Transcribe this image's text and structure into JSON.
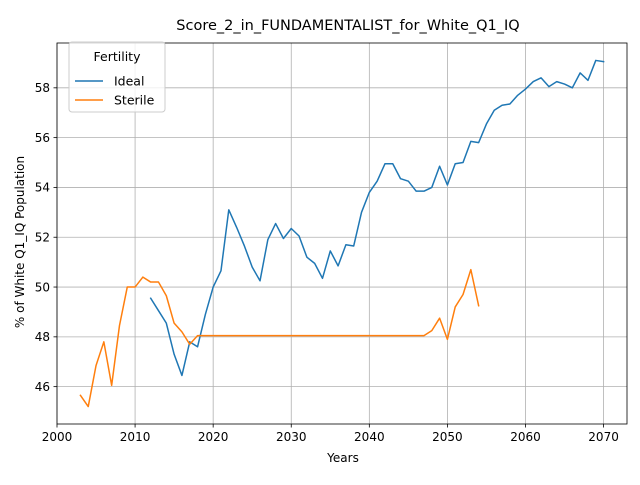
{
  "chart_data": {
    "type": "line",
    "title": "Score_2_in_FUNDAMENTALIST_for_White_Q1_IQ",
    "xlabel": "Years",
    "ylabel": "% of White Q1_IQ Population",
    "xlim": [
      2000,
      2073
    ],
    "ylim": [
      44.5,
      59.8
    ],
    "x_ticks": [
      2000,
      2010,
      2020,
      2030,
      2040,
      2050,
      2060,
      2070
    ],
    "y_ticks": [
      46,
      48,
      50,
      52,
      54,
      56,
      58
    ],
    "grid": true,
    "legend": {
      "title": "Fertility",
      "position": "top-left"
    },
    "series": [
      {
        "name": "Ideal",
        "color": "#1f77b4",
        "x": [
          2012,
          2013,
          2014,
          2015,
          2016,
          2017,
          2018,
          2019,
          2020,
          2021,
          2022,
          2023,
          2024,
          2025,
          2026,
          2027,
          2028,
          2029,
          2030,
          2031,
          2032,
          2033,
          2034,
          2035,
          2036,
          2037,
          2038,
          2039,
          2040,
          2041,
          2042,
          2043,
          2044,
          2045,
          2046,
          2047,
          2048,
          2049,
          2050,
          2051,
          2052,
          2053,
          2054,
          2055,
          2056,
          2057,
          2058,
          2059,
          2060,
          2061,
          2062,
          2063,
          2064,
          2065,
          2066,
          2067,
          2068,
          2069,
          2070
        ],
        "values": [
          49.55,
          49.05,
          48.55,
          47.3,
          46.45,
          47.8,
          47.6,
          48.9,
          50.0,
          50.65,
          53.1,
          52.4,
          51.65,
          50.8,
          50.25,
          51.9,
          52.55,
          51.95,
          52.35,
          52.05,
          51.2,
          50.95,
          50.35,
          51.45,
          50.85,
          51.7,
          51.65,
          53.0,
          53.8,
          54.25,
          54.95,
          54.95,
          54.35,
          54.25,
          53.85,
          53.85,
          54.0,
          54.85,
          54.1,
          54.95,
          55.0,
          55.85,
          55.8,
          56.55,
          57.1,
          57.3,
          57.35,
          57.7,
          57.95,
          58.25,
          58.4,
          58.05,
          58.25,
          58.15,
          58.0,
          58.6,
          58.3,
          59.1,
          59.05
        ]
      },
      {
        "name": "Sterile",
        "color": "#ff7f0e",
        "x": [
          2003,
          2004,
          2005,
          2006,
          2007,
          2008,
          2009,
          2010,
          2011,
          2012,
          2013,
          2014,
          2015,
          2016,
          2017,
          2018,
          2019,
          2020,
          2021,
          2022,
          2023,
          2024,
          2025,
          2026,
          2027,
          2028,
          2029,
          2030,
          2031,
          2032,
          2033,
          2034,
          2035,
          2036,
          2037,
          2038,
          2039,
          2040,
          2041,
          2042,
          2043,
          2044,
          2045,
          2046,
          2047,
          2048,
          2049,
          2050,
          2051,
          2052,
          2053,
          2054
        ],
        "values": [
          45.65,
          45.2,
          46.85,
          47.8,
          46.05,
          48.45,
          50.0,
          50.0,
          50.4,
          50.2,
          50.2,
          49.65,
          48.55,
          48.2,
          47.7,
          48.05,
          48.05,
          48.05,
          48.05,
          48.05,
          48.05,
          48.05,
          48.05,
          48.05,
          48.05,
          48.05,
          48.05,
          48.05,
          48.05,
          48.05,
          48.05,
          48.05,
          48.05,
          48.05,
          48.05,
          48.05,
          48.05,
          48.05,
          48.05,
          48.05,
          48.05,
          48.05,
          48.05,
          48.05,
          48.05,
          48.25,
          48.75,
          47.9,
          49.2,
          49.7,
          50.7,
          49.25
        ]
      }
    ]
  }
}
